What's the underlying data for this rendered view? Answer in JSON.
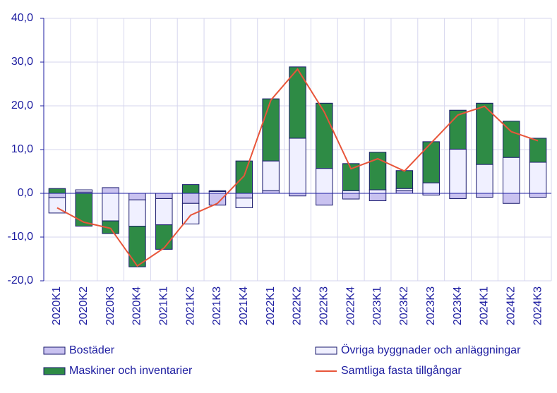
{
  "chart_data": {
    "type": "bar",
    "stacked": true,
    "grid": true,
    "categories": [
      "2020K1",
      "2020K2",
      "2020K3",
      "2020K4",
      "2021K1",
      "2021K2",
      "2021K3",
      "2021K4",
      "2022K1",
      "2022K2",
      "2022K3",
      "2022K4",
      "2023K1",
      "2023K2",
      "2023K3",
      "2023K4",
      "2024K1",
      "2024K2",
      "2024K3"
    ],
    "ylim": [
      -20,
      40
    ],
    "yticks": [
      {
        "value": -20,
        "label": "-20,0"
      },
      {
        "value": -10,
        "label": "-10,0"
      },
      {
        "value": 0,
        "label": "0,0"
      },
      {
        "value": 10,
        "label": "10,0"
      },
      {
        "value": 20,
        "label": "20,0"
      },
      {
        "value": 30,
        "label": "30,0"
      },
      {
        "value": 40,
        "label": "40,0"
      }
    ],
    "series": [
      {
        "name": "Bostäder",
        "type": "bar",
        "color": "#c9c2f0",
        "values": [
          -1.0,
          0.3,
          1.3,
          -1.5,
          -1.2,
          -2.3,
          -2.7,
          -1.1,
          0.6,
          -0.6,
          -2.7,
          -1.3,
          -1.7,
          0.6,
          -0.4,
          -1.2,
          -0.9,
          -2.3,
          -0.9
        ]
      },
      {
        "name": "Övriga byggnader och anläggningar",
        "type": "bar",
        "color": "#f0f0ff",
        "values": [
          -3.5,
          0.5,
          -6.3,
          -6.0,
          -6.0,
          -4.7,
          0.4,
          -2.2,
          6.8,
          12.6,
          5.7,
          0.6,
          0.8,
          0.5,
          2.4,
          10.1,
          6.6,
          8.2,
          7.1
        ]
      },
      {
        "name": "Maskiner och inventarier",
        "type": "bar",
        "color": "#2e8b45",
        "values": [
          1.1,
          -7.5,
          -2.9,
          -9.3,
          -5.6,
          2.0,
          0.2,
          7.4,
          14.2,
          16.3,
          14.9,
          6.2,
          8.6,
          4.1,
          9.4,
          8.9,
          14.0,
          8.3,
          5.5
        ]
      },
      {
        "name": "Samtliga fasta tillgångar",
        "type": "line",
        "color": "#e8553a",
        "values": [
          -3.3,
          -6.6,
          -8.0,
          -16.6,
          -12.5,
          -5.0,
          -2.3,
          4.0,
          21.3,
          28.4,
          18.6,
          5.6,
          7.9,
          5.1,
          11.5,
          17.9,
          19.9,
          14.1,
          12.0
        ]
      }
    ]
  }
}
